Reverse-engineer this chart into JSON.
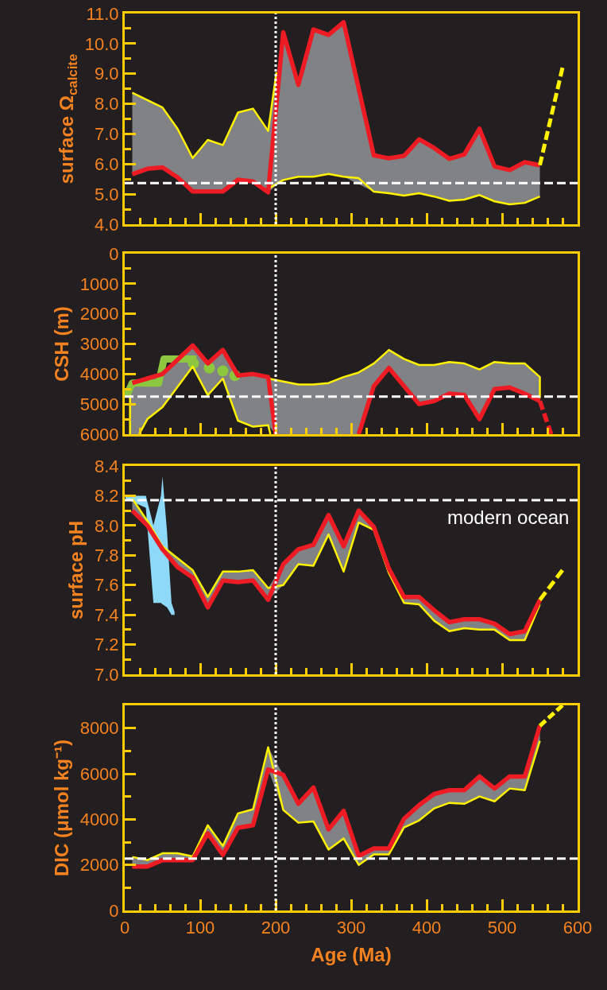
{
  "chart_data": [
    {
      "type": "line",
      "ylabel": "surface Ω$_{calcite}$",
      "xlim": [
        0,
        600
      ],
      "ylim": [
        4,
        11
      ],
      "tick_labels": "y",
      "xticks": [
        0,
        {
          "value": 20,
          "label": null
        },
        {
          "value": 40,
          "label": null
        },
        {
          "value": 60,
          "label": null
        },
        {
          "value": 80,
          "label": null
        },
        100,
        {
          "value": 120,
          "label": null
        },
        {
          "value": 140,
          "label": null
        },
        {
          "value": 160,
          "label": null
        },
        {
          "value": 180,
          "label": null
        },
        200,
        {
          "value": 220,
          "label": null
        },
        {
          "value": 240,
          "label": null
        },
        {
          "value": 260,
          "label": null
        },
        {
          "value": 280,
          "label": null
        },
        300,
        {
          "value": 320,
          "label": null
        },
        {
          "value": 340,
          "label": null
        },
        {
          "value": 360,
          "label": null
        },
        {
          "value": 380,
          "label": null
        },
        400,
        {
          "value": 420,
          "label": null
        },
        {
          "value": 440,
          "label": null
        },
        {
          "value": 460,
          "label": null
        },
        {
          "value": 480,
          "label": null
        },
        500,
        {
          "value": 520,
          "label": null
        },
        {
          "value": 540,
          "label": null
        },
        {
          "value": 560,
          "label": null
        },
        {
          "value": 580,
          "label": null
        },
        600
      ],
      "yticks": [
        {
          "value": 4,
          "label": "4.0"
        },
        {
          "value": 4.5,
          "label": null
        },
        {
          "value": 5,
          "label": "5.0"
        },
        {
          "value": 5.5,
          "label": null
        },
        {
          "value": 6,
          "label": "6.0"
        },
        {
          "value": 6.5,
          "label": null
        },
        {
          "value": 7,
          "label": "7.0"
        },
        {
          "value": 7.5,
          "label": null
        },
        {
          "value": 8,
          "label": "8.0"
        },
        {
          "value": 8.5,
          "label": null
        },
        {
          "value": 9,
          "label": "9.0"
        },
        {
          "value": 9.5,
          "label": null
        },
        {
          "value": 10,
          "label": "10.0"
        },
        {
          "value": 10.5,
          "label": null
        },
        {
          "value": 11,
          "label": "11.0"
        }
      ],
      "series": [
        {
          "color": "#fff200",
          "x": [
            10,
            50,
            70,
            90,
            110,
            130,
            150,
            170,
            190,
            201
          ],
          "values": [
            8.37,
            7.88,
            7.17,
            6.2,
            6.8,
            6.63,
            7.71,
            7.84,
            7.1,
            9.05
          ]
        },
        {
          "color": "#fff200",
          "x": [
            190,
            210,
            230,
            250,
            270,
            290,
            310,
            330,
            350,
            370,
            390,
            410,
            430,
            450,
            470,
            490,
            510,
            530,
            550
          ],
          "values": [
            5.18,
            5.47,
            5.58,
            5.58,
            5.67,
            5.58,
            5.53,
            5.08,
            5.03,
            4.95,
            5.03,
            4.92,
            4.78,
            4.82,
            4.97,
            4.76,
            4.66,
            4.71,
            4.92
          ]
        },
        {
          "color": "#ed1c24",
          "x": [
            10,
            30,
            50,
            70,
            90,
            110,
            130,
            150,
            170,
            190,
            210,
            230,
            250,
            270,
            290,
            330,
            350,
            370,
            390,
            410,
            430,
            450,
            470,
            490,
            510,
            530,
            550
          ],
          "values": [
            5.66,
            5.84,
            5.89,
            5.56,
            5.09,
            5.09,
            5.09,
            5.48,
            5.42,
            5.06,
            10.38,
            8.63,
            10.47,
            10.29,
            10.71,
            6.29,
            6.19,
            6.27,
            6.82,
            6.53,
            6.17,
            6.32,
            7.17,
            5.92,
            5.8,
            6.06,
            5.96
          ],
          "lower": [
            5.66,
            5.84,
            5.89,
            5.56,
            5.09,
            5.09,
            5.09,
            5.48,
            5.42,
            5.06,
            5.47,
            5.58,
            5.58,
            5.67,
            5.58,
            5.08,
            5.03,
            4.95,
            5.03,
            4.92,
            4.78,
            4.82,
            4.97,
            4.76,
            4.66,
            4.71,
            4.92
          ],
          "upper": [
            8.37,
            8.12,
            7.88,
            7.17,
            6.2,
            6.8,
            6.63,
            7.71,
            7.84,
            7.1,
            10.38,
            8.63,
            10.47,
            10.29,
            10.71,
            6.29,
            6.19,
            6.27,
            6.82,
            6.53,
            6.17,
            6.32,
            7.17,
            5.92,
            5.8,
            6.06,
            5.96
          ]
        },
        {
          "color": "#fff200",
          "line_style": "dashed",
          "x": [
            550,
            580
          ],
          "values": [
            5.96,
            9.2
          ]
        }
      ],
      "ref_lines": [
        {
          "axis": "y",
          "value": 5.37,
          "color": "#ffffff",
          "line_style": "dashed"
        },
        {
          "axis": "x",
          "value": 200,
          "color": "#ffffff",
          "line_style": "dotted"
        }
      ]
    },
    {
      "type": "line",
      "ylabel": "CSH (m)",
      "xlim": [
        0,
        600
      ],
      "ylim": [
        6000,
        0
      ],
      "tick_labels": "y",
      "xticks": [
        0,
        {
          "value": 20,
          "label": null
        },
        {
          "value": 40,
          "label": null
        },
        {
          "value": 60,
          "label": null
        },
        {
          "value": 80,
          "label": null
        },
        100,
        {
          "value": 120,
          "label": null
        },
        {
          "value": 140,
          "label": null
        },
        {
          "value": 160,
          "label": null
        },
        {
          "value": 180,
          "label": null
        },
        200,
        {
          "value": 220,
          "label": null
        },
        {
          "value": 240,
          "label": null
        },
        {
          "value": 260,
          "label": null
        },
        {
          "value": 280,
          "label": null
        },
        300,
        {
          "value": 320,
          "label": null
        },
        {
          "value": 340,
          "label": null
        },
        {
          "value": 360,
          "label": null
        },
        {
          "value": 380,
          "label": null
        },
        400,
        {
          "value": 420,
          "label": null
        },
        {
          "value": 440,
          "label": null
        },
        {
          "value": 460,
          "label": null
        },
        {
          "value": 480,
          "label": null
        },
        500,
        {
          "value": 520,
          "label": null
        },
        {
          "value": 540,
          "label": null
        },
        {
          "value": 560,
          "label": null
        },
        {
          "value": 580,
          "label": null
        },
        600
      ],
      "yticks": [
        0,
        {
          "value": 500,
          "label": null
        },
        1000,
        {
          "value": 1500,
          "label": null
        },
        2000,
        {
          "value": 2500,
          "label": null
        },
        3000,
        {
          "value": 3500,
          "label": null
        },
        4000,
        {
          "value": 4500,
          "label": null
        },
        5000,
        {
          "value": 5500,
          "label": null
        },
        6000
      ],
      "series": [
        {
          "color": "#8dc63f",
          "x": [
            2,
            10,
            45,
            52,
            95
          ],
          "values": [
            4750,
            4300,
            4300,
            3500,
            3500
          ]
        },
        {
          "type": "scatter",
          "color": "#8dc63f",
          "marker": "circle",
          "x": [
            91,
            112,
            130,
            146
          ],
          "values": [
            3650,
            3800,
            3900,
            4050
          ]
        },
        {
          "color": "#fff200",
          "x": [
            7,
            7
          ],
          "values": [
            6000,
            4700
          ]
        },
        {
          "color": "#fff200",
          "x": [
            19,
            30,
            50,
            90,
            110,
            130,
            150,
            170,
            190,
            193
          ],
          "values": [
            6000,
            5500,
            5100,
            3750,
            4700,
            4150,
            5550,
            5750,
            5700,
            6000
          ]
        },
        {
          "color": "#fff200",
          "x": [
            190,
            210,
            230,
            250,
            270,
            290,
            310,
            330,
            350,
            370,
            390,
            410,
            430,
            450,
            470,
            490,
            510,
            530,
            550,
            550
          ],
          "values": [
            4150,
            4250,
            4350,
            4350,
            4300,
            4100,
            3950,
            3650,
            3200,
            3500,
            3700,
            3700,
            3600,
            3650,
            3850,
            3600,
            3650,
            3650,
            4100,
            4800
          ]
        },
        {
          "color": "#ed1c24",
          "x": [
            7,
            10,
            19,
            30,
            50,
            90,
            110,
            130,
            150,
            170,
            190,
            200,
            210,
            230,
            250,
            270,
            290,
            310,
            330,
            350,
            370,
            390,
            410,
            430,
            450,
            470,
            490,
            510,
            530,
            550
          ],
          "values": [
            null,
            4300,
            4230,
            4150,
            4000,
            3050,
            3650,
            3200,
            4050,
            4000,
            4100,
            6000,
            null,
            null,
            null,
            null,
            null,
            6000,
            4400,
            3800,
            4400,
            5000,
            4900,
            4650,
            4700,
            5500,
            4500,
            4450,
            4650,
            4900
          ],
          "lower": [
            4700,
            4300,
            4230,
            4150,
            4000,
            3050,
            3650,
            3200,
            4050,
            4000,
            4100,
            4200,
            4250,
            4350,
            4350,
            4300,
            4100,
            3950,
            3650,
            3200,
            3500,
            3700,
            3700,
            3600,
            3650,
            3850,
            3600,
            3650,
            3650,
            4100
          ],
          "upper": [
            6000,
            6000,
            6000,
            5500,
            5100,
            3750,
            4700,
            4150,
            5550,
            5750,
            5700,
            6000,
            6000,
            6000,
            6000,
            6000,
            6000,
            6000,
            4400,
            3800,
            4400,
            5000,
            4900,
            4650,
            4700,
            5500,
            4500,
            4450,
            4650,
            4900
          ]
        },
        {
          "color": "#ed1c24",
          "line_style": "dashed",
          "x": [
            550,
            565
          ],
          "values": [
            4900,
            6000
          ]
        }
      ],
      "ref_lines": [
        {
          "axis": "y",
          "value": 4750,
          "color": "#ffffff",
          "line_style": "dashed"
        },
        {
          "axis": "x",
          "value": 200,
          "color": "#ffffff",
          "line_style": "dotted"
        }
      ]
    },
    {
      "type": "line",
      "ylabel": "surface pH",
      "xlim": [
        0,
        600
      ],
      "ylim": [
        7.0,
        8.4
      ],
      "tick_labels": "y",
      "xticks": [
        0,
        {
          "value": 20,
          "label": null
        },
        {
          "value": 40,
          "label": null
        },
        {
          "value": 60,
          "label": null
        },
        {
          "value": 80,
          "label": null
        },
        100,
        {
          "value": 120,
          "label": null
        },
        {
          "value": 140,
          "label": null
        },
        {
          "value": 160,
          "label": null
        },
        {
          "value": 180,
          "label": null
        },
        200,
        {
          "value": 220,
          "label": null
        },
        {
          "value": 240,
          "label": null
        },
        {
          "value": 260,
          "label": null
        },
        {
          "value": 280,
          "label": null
        },
        300,
        {
          "value": 320,
          "label": null
        },
        {
          "value": 340,
          "label": null
        },
        {
          "value": 360,
          "label": null
        },
        {
          "value": 380,
          "label": null
        },
        400,
        {
          "value": 420,
          "label": null
        },
        {
          "value": 440,
          "label": null
        },
        {
          "value": 460,
          "label": null
        },
        {
          "value": 480,
          "label": null
        },
        500,
        {
          "value": 520,
          "label": null
        },
        {
          "value": 540,
          "label": null
        },
        {
          "value": 560,
          "label": null
        },
        {
          "value": 580,
          "label": null
        },
        600
      ],
      "yticks": [
        {
          "value": 7.0,
          "label": "7.0"
        },
        {
          "value": 7.1,
          "label": null
        },
        {
          "value": 7.2,
          "label": "7.2"
        },
        {
          "value": 7.3,
          "label": null
        },
        {
          "value": 7.4,
          "label": "7.4"
        },
        {
          "value": 7.5,
          "label": null
        },
        {
          "value": 7.6,
          "label": "7.6"
        },
        {
          "value": 7.7,
          "label": null
        },
        {
          "value": 7.8,
          "label": "7.8"
        },
        {
          "value": 7.9,
          "label": null
        },
        {
          "value": 8.0,
          "label": "8.0"
        },
        {
          "value": 8.1,
          "label": null
        },
        {
          "value": 8.2,
          "label": "8.2"
        },
        {
          "value": 8.3,
          "label": null
        },
        {
          "value": 8.4,
          "label": "8.4"
        }
      ],
      "series": [
        {
          "color": "#fff200",
          "x": [
            10,
            30,
            50,
            70,
            90,
            110,
            130,
            150,
            170,
            190,
            210,
            230,
            250,
            270,
            290,
            310,
            330,
            350,
            370,
            390,
            410,
            430,
            450,
            470,
            490,
            510,
            530,
            550
          ],
          "values": [
            8.18,
            8.03,
            7.86,
            7.78,
            7.7,
            7.52,
            7.69,
            7.69,
            7.7,
            7.58,
            7.6,
            7.74,
            7.73,
            7.94,
            7.69,
            8.02,
            7.97,
            7.68,
            7.48,
            7.47,
            7.36,
            7.29,
            7.31,
            7.3,
            7.3,
            7.23,
            7.23,
            7.47
          ]
        },
        {
          "color": "#8ed8f8",
          "x": [
            1,
            28,
            38,
            48,
            50,
            56,
            62,
            66
          ],
          "values": [
            null,
            null,
            null,
            null,
            null,
            null,
            null,
            null
          ],
          "lower": [
            8.18,
            8.12,
            7.48,
            7.48,
            7.47,
            7.45,
            7.4,
            7.4
          ],
          "upper": [
            8.2,
            8.2,
            8.0,
            8.2,
            8.33,
            7.96,
            7.48,
            7.42
          ]
        },
        {
          "color": "#ed1c24",
          "x": [
            10,
            30,
            50,
            70,
            90,
            110,
            130,
            150,
            170,
            190,
            210,
            230,
            250,
            270,
            290,
            310,
            330,
            350,
            370,
            390,
            410,
            430,
            450,
            470,
            490,
            510,
            530,
            550
          ],
          "values": [
            8.1,
            8.0,
            7.84,
            7.72,
            7.65,
            7.45,
            7.63,
            7.62,
            7.63,
            7.5,
            7.74,
            7.84,
            7.87,
            8.07,
            7.86,
            8.1,
            7.99,
            7.71,
            7.52,
            7.52,
            7.43,
            7.35,
            7.37,
            7.37,
            7.34,
            7.27,
            7.29,
            7.5
          ],
          "lower": [
            8.1,
            8.0,
            7.84,
            7.72,
            7.65,
            7.45,
            7.63,
            7.62,
            7.63,
            7.5,
            7.6,
            7.74,
            7.73,
            7.94,
            7.69,
            8.02,
            7.97,
            7.68,
            7.48,
            7.47,
            7.36,
            7.29,
            7.31,
            7.3,
            7.3,
            7.23,
            7.23,
            7.47
          ],
          "upper": [
            8.18,
            8.03,
            7.86,
            7.78,
            7.7,
            7.52,
            7.69,
            7.69,
            7.7,
            7.58,
            7.74,
            7.84,
            7.87,
            8.07,
            7.86,
            8.1,
            7.99,
            7.71,
            7.52,
            7.52,
            7.43,
            7.35,
            7.37,
            7.37,
            7.34,
            7.27,
            7.29,
            7.5
          ]
        },
        {
          "color": "#fff200",
          "line_style": "dashed",
          "x": [
            550,
            580
          ],
          "values": [
            7.5,
            7.7
          ]
        }
      ],
      "ref_lines": [
        {
          "axis": "y",
          "value": 8.17,
          "label": "modern ocean",
          "color": "#ffffff",
          "line_style": "dashed"
        },
        {
          "axis": "x",
          "value": 200,
          "color": "#ffffff",
          "line_style": "dotted"
        }
      ]
    },
    {
      "type": "line",
      "ylabel": "DIC (μmol kg⁻¹)",
      "xlabel": "Age (Ma)",
      "xlim": [
        0,
        600
      ],
      "ylim": [
        0,
        9000
      ],
      "xticks": [
        0,
        {
          "value": 20,
          "label": null
        },
        {
          "value": 40,
          "label": null
        },
        {
          "value": 60,
          "label": null
        },
        {
          "value": 80,
          "label": null
        },
        100,
        {
          "value": 120,
          "label": null
        },
        {
          "value": 140,
          "label": null
        },
        {
          "value": 160,
          "label": null
        },
        {
          "value": 180,
          "label": null
        },
        200,
        {
          "value": 220,
          "label": null
        },
        {
          "value": 240,
          "label": null
        },
        {
          "value": 260,
          "label": null
        },
        {
          "value": 280,
          "label": null
        },
        300,
        {
          "value": 320,
          "label": null
        },
        {
          "value": 340,
          "label": null
        },
        {
          "value": 360,
          "label": null
        },
        {
          "value": 380,
          "label": null
        },
        400,
        {
          "value": 420,
          "label": null
        },
        {
          "value": 440,
          "label": null
        },
        {
          "value": 460,
          "label": null
        },
        {
          "value": 480,
          "label": null
        },
        500,
        {
          "value": 520,
          "label": null
        },
        {
          "value": 540,
          "label": null
        },
        {
          "value": 560,
          "label": null
        },
        {
          "value": 580,
          "label": null
        },
        600
      ],
      "yticks": [
        0,
        {
          "value": 1000,
          "label": null
        },
        2000,
        {
          "value": 3000,
          "label": null
        },
        4000,
        {
          "value": 5000,
          "label": null
        },
        6000,
        {
          "value": 7000,
          "label": null
        },
        8000
      ],
      "series": [
        {
          "color": "#fff200",
          "x": [
            10,
            30,
            50,
            70,
            90,
            110,
            130,
            150,
            170,
            190,
            210,
            230,
            250,
            270,
            290,
            310,
            330,
            350,
            370,
            390,
            410,
            430,
            450,
            470,
            490,
            510,
            530,
            550
          ],
          "values": [
            2350,
            2210,
            2510,
            2510,
            2370,
            3740,
            2830,
            4260,
            4440,
            7160,
            4410,
            3850,
            3910,
            2670,
            3160,
            2000,
            2460,
            2460,
            3640,
            3950,
            4480,
            4720,
            4680,
            5000,
            4790,
            5350,
            5280,
            7440
          ]
        },
        {
          "color": "#ed1c24",
          "x": [
            10,
            30,
            50,
            70,
            90,
            110,
            130,
            150,
            170,
            190,
            210,
            230,
            250,
            270,
            290,
            310,
            330,
            350,
            370,
            390,
            410,
            430,
            450,
            470,
            490,
            510,
            530,
            550
          ],
          "values": [
            1930,
            1930,
            2210,
            2210,
            2210,
            3390,
            2440,
            3630,
            3740,
            6190,
            5950,
            4680,
            5390,
            3560,
            4370,
            2390,
            2720,
            2720,
            4020,
            4620,
            5110,
            5280,
            5280,
            5880,
            5350,
            5880,
            5880,
            8100
          ],
          "lower": [
            1930,
            1930,
            2210,
            2210,
            2210,
            3390,
            2440,
            3630,
            3740,
            6190,
            4410,
            3850,
            3910,
            2670,
            3160,
            2000,
            2460,
            2460,
            3640,
            3950,
            4480,
            4720,
            4680,
            5000,
            4790,
            5350,
            5280,
            7440
          ],
          "upper": [
            2350,
            2210,
            2510,
            2510,
            2370,
            3740,
            2830,
            4260,
            4440,
            7160,
            5950,
            4680,
            5390,
            3560,
            4370,
            2390,
            2720,
            2720,
            4020,
            4620,
            5110,
            5280,
            5280,
            5880,
            5350,
            5880,
            5880,
            8100
          ]
        },
        {
          "color": "#fff200",
          "line_style": "dashed",
          "x": [
            550,
            580
          ],
          "values": [
            8100,
            9000
          ]
        }
      ],
      "ref_lines": [
        {
          "axis": "y",
          "value": 2280,
          "color": "#ffffff",
          "line_style": "dashed"
        },
        {
          "axis": "x",
          "value": 200,
          "color": "#ffffff",
          "line_style": "dotted"
        }
      ]
    }
  ]
}
